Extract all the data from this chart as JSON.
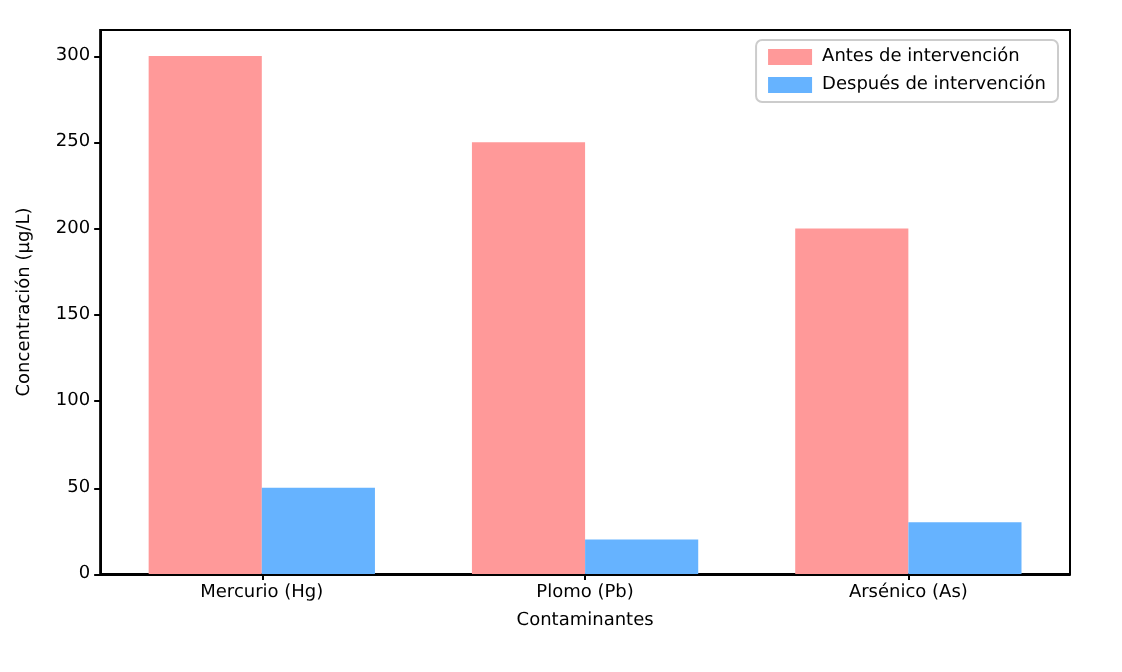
{
  "chart_data": {
    "type": "bar",
    "xlabel": "Contaminantes",
    "ylabel": "Concentración (µg/L)",
    "categories": [
      "Mercurio (Hg)",
      "Plomo (Pb)",
      "Arsénico (As)"
    ],
    "series": [
      {
        "name": "Antes de intervención",
        "color": "#ff9999",
        "values": [
          300,
          250,
          200
        ]
      },
      {
        "name": "Después de intervención",
        "color": "#66b3ff",
        "values": [
          50,
          20,
          30
        ]
      }
    ],
    "ylim": [
      0,
      315
    ],
    "yticks": [
      0,
      50,
      100,
      150,
      200,
      250,
      300
    ],
    "grid": false,
    "legend": "top right"
  }
}
